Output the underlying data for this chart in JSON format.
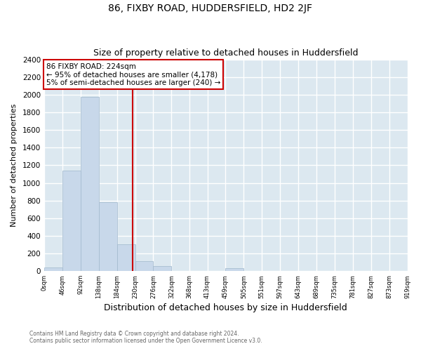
{
  "title": "86, FIXBY ROAD, HUDDERSFIELD, HD2 2JF",
  "subtitle": "Size of property relative to detached houses in Huddersfield",
  "xlabel": "Distribution of detached houses by size in Huddersfield",
  "ylabel": "Number of detached properties",
  "bar_edges": [
    0,
    46,
    92,
    138,
    184,
    230,
    276,
    322,
    368,
    413,
    459,
    505,
    551,
    597,
    643,
    689,
    735,
    781,
    827,
    873,
    919
  ],
  "bar_heights": [
    40,
    1140,
    1975,
    780,
    305,
    110,
    55,
    0,
    0,
    0,
    30,
    0,
    0,
    0,
    0,
    0,
    0,
    0,
    0,
    0
  ],
  "bar_color": "#c8d8ea",
  "bar_edgecolor": "#a0b8cc",
  "property_line_x": 224,
  "property_line_color": "#cc0000",
  "annotation_text_line1": "86 FIXBY ROAD: 224sqm",
  "annotation_text_line2": "← 95% of detached houses are smaller (4,178)",
  "annotation_text_line3": "5% of semi-detached houses are larger (240) →",
  "annotation_box_facecolor": "#ffffff",
  "annotation_box_edgecolor": "#cc0000",
  "ylim": [
    0,
    2400
  ],
  "yticks": [
    0,
    200,
    400,
    600,
    800,
    1000,
    1200,
    1400,
    1600,
    1800,
    2000,
    2200,
    2400
  ],
  "tick_labels": [
    "0sqm",
    "46sqm",
    "92sqm",
    "138sqm",
    "184sqm",
    "230sqm",
    "276sqm",
    "322sqm",
    "368sqm",
    "413sqm",
    "459sqm",
    "505sqm",
    "551sqm",
    "597sqm",
    "643sqm",
    "689sqm",
    "735sqm",
    "781sqm",
    "827sqm",
    "873sqm",
    "919sqm"
  ],
  "footer_line1": "Contains HM Land Registry data © Crown copyright and database right 2024.",
  "footer_line2": "Contains public sector information licensed under the Open Government Licence v3.0.",
  "fig_bg_color": "#ffffff",
  "plot_bg_color": "#dce8f0",
  "grid_color": "#ffffff",
  "title_fontsize": 10,
  "subtitle_fontsize": 9,
  "xlabel_fontsize": 9,
  "ylabel_fontsize": 8
}
